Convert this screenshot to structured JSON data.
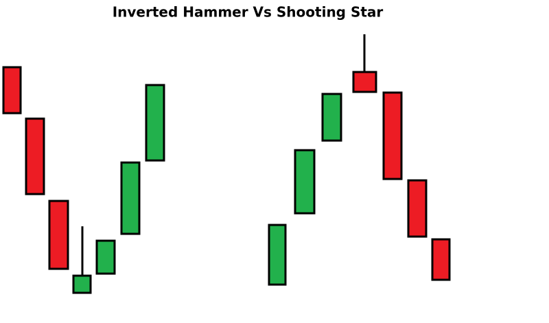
{
  "title": "Inverted Hammer Vs Shooting Star"
}
